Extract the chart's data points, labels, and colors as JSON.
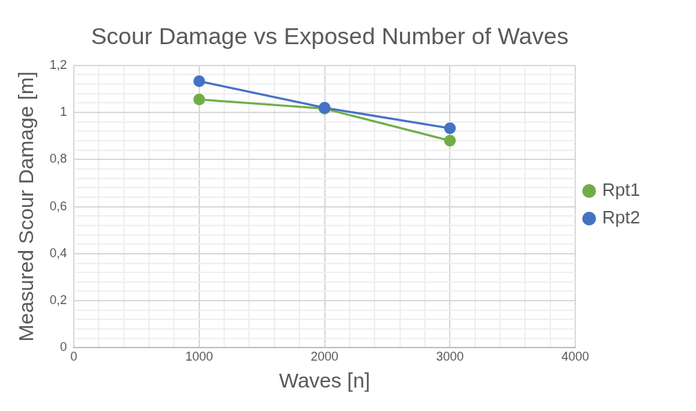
{
  "chart_data": {
    "type": "line",
    "title": "Scour Damage vs Exposed Number of Waves",
    "xlabel": "Waves [n]",
    "ylabel": "Measured Scour Damage [m]",
    "x": [
      1000,
      2000,
      3000
    ],
    "series": [
      {
        "name": "Rpt1",
        "color": "#70ad47",
        "values": [
          1.055,
          1.016,
          0.88
        ]
      },
      {
        "name": "Rpt2",
        "color": "#4472c4",
        "values": [
          1.133,
          1.02,
          0.933
        ]
      }
    ],
    "xlim": [
      0,
      4000
    ],
    "xticks": [
      0,
      {
        "value": 200,
        "label": null
      },
      {
        "value": 400,
        "label": null
      },
      {
        "value": 600,
        "label": null
      },
      {
        "value": 800,
        "label": null
      },
      1000,
      {
        "value": 1200,
        "label": null
      },
      {
        "value": 1400,
        "label": null
      },
      {
        "value": 1600,
        "label": null
      },
      {
        "value": 1800,
        "label": null
      },
      2000,
      {
        "value": 2200,
        "label": null
      },
      {
        "value": 2400,
        "label": null
      },
      {
        "value": 2600,
        "label": null
      },
      {
        "value": 2800,
        "label": null
      },
      3000,
      {
        "value": 3200,
        "label": null
      },
      {
        "value": 3400,
        "label": null
      },
      {
        "value": 3600,
        "label": null
      },
      {
        "value": 3800,
        "label": null
      },
      4000
    ],
    "ylim": [
      0,
      1.2
    ],
    "yticks": [
      0,
      {
        "value": 0.04,
        "label": null
      },
      {
        "value": 0.08,
        "label": null
      },
      {
        "value": 0.12,
        "label": null
      },
      {
        "value": 0.16,
        "label": null
      },
      {
        "value": 0.2,
        "label": "0,2"
      },
      {
        "value": 0.24,
        "label": null
      },
      {
        "value": 0.28,
        "label": null
      },
      {
        "value": 0.32,
        "label": null
      },
      {
        "value": 0.36,
        "label": null
      },
      {
        "value": 0.4,
        "label": "0,4"
      },
      {
        "value": 0.44,
        "label": null
      },
      {
        "value": 0.48,
        "label": null
      },
      {
        "value": 0.52,
        "label": null
      },
      {
        "value": 0.56,
        "label": null
      },
      {
        "value": 0.6,
        "label": "0,6"
      },
      {
        "value": 0.64,
        "label": null
      },
      {
        "value": 0.68,
        "label": null
      },
      {
        "value": 0.72,
        "label": null
      },
      {
        "value": 0.76,
        "label": null
      },
      {
        "value": 0.8,
        "label": "0,8"
      },
      {
        "value": 0.84,
        "label": null
      },
      {
        "value": 0.88,
        "label": null
      },
      {
        "value": 0.92,
        "label": null
      },
      {
        "value": 0.96,
        "label": null
      },
      1,
      {
        "value": 1.04,
        "label": null
      },
      {
        "value": 1.08,
        "label": null
      },
      {
        "value": 1.12,
        "label": null
      },
      {
        "value": 1.16,
        "label": null
      },
      {
        "value": 1.2,
        "label": "1,2"
      }
    ],
    "grid": true,
    "legend": "right",
    "marker": "circle",
    "line_style": "solid"
  }
}
